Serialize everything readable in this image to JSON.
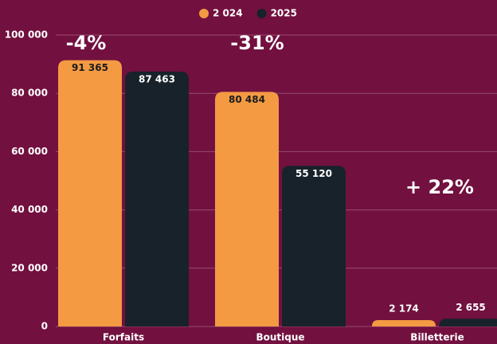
{
  "chart_data": {
    "type": "bar",
    "categories": [
      "Forfaits",
      "Boutique",
      "Billetterie"
    ],
    "series": [
      {
        "name": "2 024",
        "color": "#f39a43",
        "values": [
          91365,
          80484,
          2174
        ],
        "value_labels": [
          "91 365",
          "80 484",
          "2 174"
        ]
      },
      {
        "name": "2025",
        "color": "#18222a",
        "values": [
          87463,
          55120,
          2655
        ],
        "value_labels": [
          "87 463",
          "55 120",
          "2 655"
        ]
      }
    ],
    "ylim": [
      0,
      100000
    ],
    "yticks": [
      {
        "value": 0,
        "label": "0"
      },
      {
        "value": 20000,
        "label": "20 000"
      },
      {
        "value": 40000,
        "label": "40 000"
      },
      {
        "value": 60000,
        "label": "60 000"
      },
      {
        "value": 80000,
        "label": "80 000"
      },
      {
        "value": 100000,
        "label": "100 000"
      }
    ],
    "grid": true,
    "legend": "top",
    "annotations": [
      "-4%",
      "-31%",
      "+ 22%"
    ]
  }
}
